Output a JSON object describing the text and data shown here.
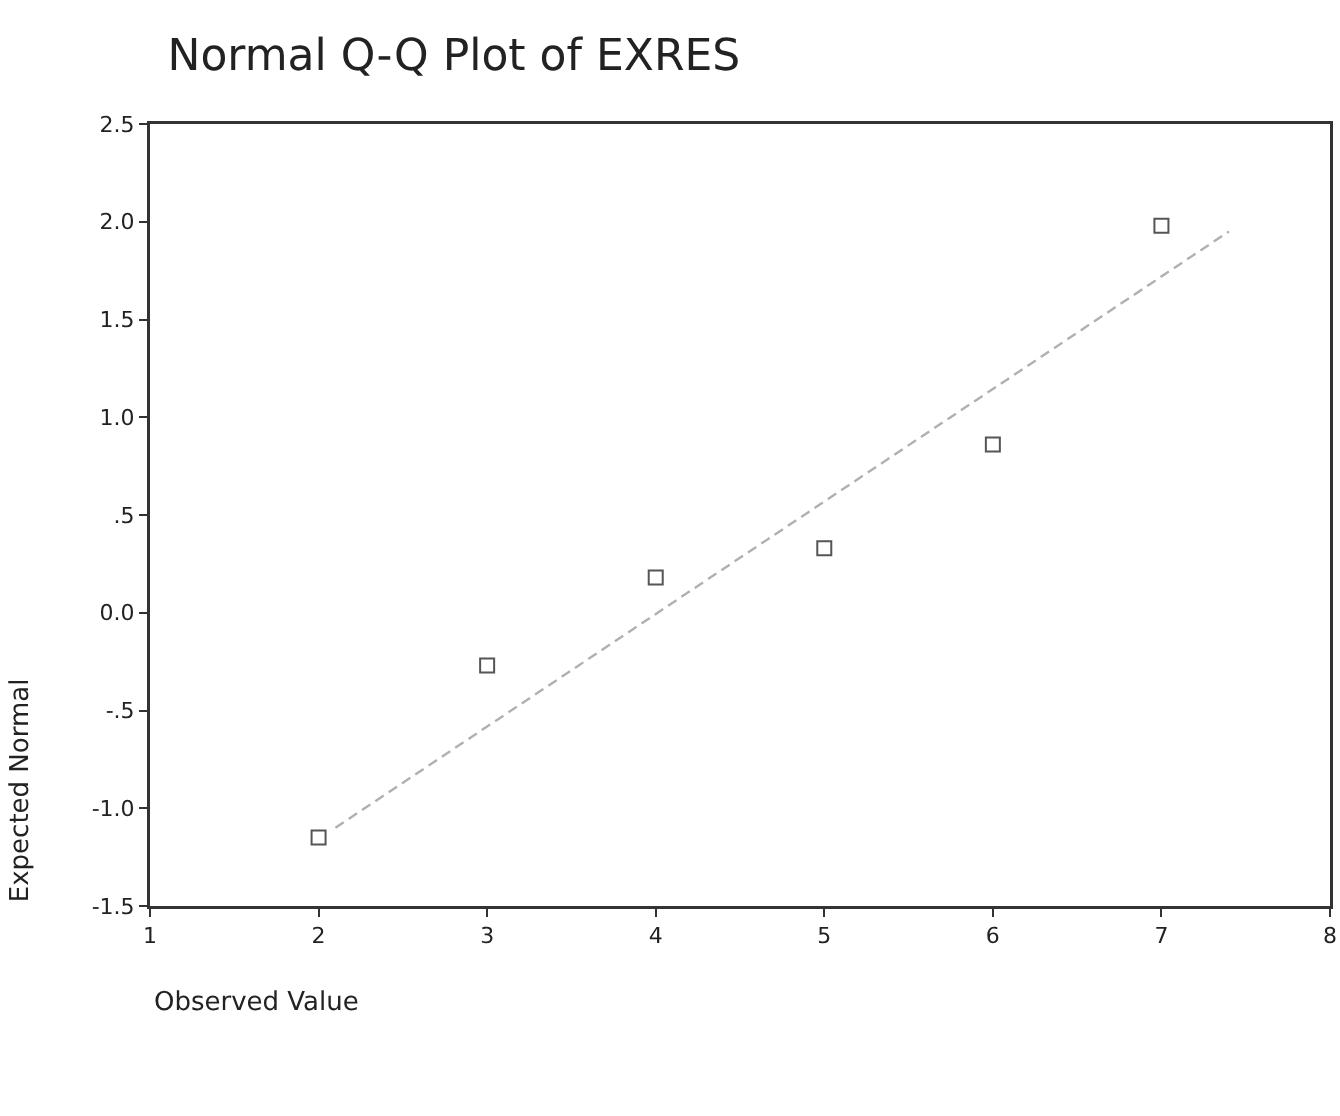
{
  "chart_data": {
    "type": "scatter",
    "title": "Normal Q-Q Plot of EXRES",
    "xlabel": "Observed Value",
    "ylabel": "Expected Normal",
    "marker": "square",
    "grid": false,
    "xlim": [
      1,
      8
    ],
    "xticks": [
      1,
      2,
      3,
      4,
      5,
      6,
      7,
      8
    ],
    "ylim": [
      -1.5,
      2.5
    ],
    "yticks": [
      {
        "value": -1.5,
        "label": "-1.5"
      },
      {
        "value": -1,
        "label": "-1.0"
      },
      {
        "value": -0.5,
        "label": "-.5"
      },
      {
        "value": 0,
        "label": "0.0"
      },
      {
        "value": 0.5,
        "label": ".5"
      },
      {
        "value": 1,
        "label": "1.0"
      },
      {
        "value": 1.5,
        "label": "1.5"
      },
      {
        "value": 2,
        "label": "2.0"
      },
      {
        "value": 2.5,
        "label": "2.5"
      }
    ],
    "series": [
      {
        "color": "#555555",
        "x": [
          2,
          3,
          4,
          5,
          6,
          7
        ],
        "values": [
          -1.15,
          -0.27,
          0.18,
          0.33,
          0.86,
          1.98
        ]
      },
      {
        "type": "line",
        "line_style": "dashed",
        "marker": "none",
        "color": "#b0b0b0",
        "x": [
          2.1,
          7.4
        ],
        "values": [
          -1.1,
          1.95
        ]
      }
    ]
  }
}
